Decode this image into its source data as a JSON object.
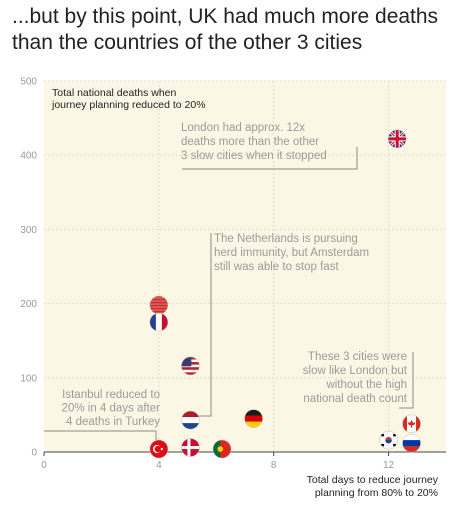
{
  "title_lines": [
    "...but by this point, UK had much more deaths",
    "than the countries of the other 3 cities"
  ],
  "chart_data": {
    "type": "scatter",
    "title": "...but by this point, UK had much more deaths than the countries of the other 3 cities",
    "ylabel_lines": [
      "Total national deaths when",
      "journey planning reduced to 20%"
    ],
    "xlabel_lines": [
      "Total days to reduce journey",
      "planning from 80% to 20%"
    ],
    "xlim": [
      0,
      14
    ],
    "ylim": [
      0,
      500
    ],
    "xticks": [
      0,
      4,
      8,
      12
    ],
    "yticks": [
      0,
      100,
      200,
      300,
      400,
      500
    ],
    "grid": true,
    "points": [
      {
        "x": 12.3,
        "y": 422,
        "country": "United Kingdom"
      },
      {
        "x": 4,
        "y": 198,
        "country": "China"
      },
      {
        "x": 4,
        "y": 175,
        "country": "France"
      },
      {
        "x": 5.1,
        "y": 116,
        "country": "United States"
      },
      {
        "x": 5.1,
        "y": 43,
        "country": "Netherlands"
      },
      {
        "x": 7.3,
        "y": 45,
        "country": "Germany"
      },
      {
        "x": 4,
        "y": 4,
        "country": "Turkey"
      },
      {
        "x": 5.1,
        "y": 6,
        "country": "Denmark"
      },
      {
        "x": 6.2,
        "y": 4,
        "country": "Portugal"
      },
      {
        "x": 12,
        "y": 16,
        "country": "South Korea"
      },
      {
        "x": 12.8,
        "y": 38,
        "country": "Canada"
      },
      {
        "x": 12.8,
        "y": 12,
        "country": "Russia"
      }
    ],
    "annotations": [
      {
        "lines": [
          "London had approx. 12x",
          "deaths more than the other",
          "3 slow cities when it stopped"
        ]
      },
      {
        "lines": [
          "The Netherlands is pursuing",
          "herd immunity, but Amsterdam",
          "still was able to stop fast"
        ]
      },
      {
        "lines": [
          "These 3 cities were",
          "slow like London but",
          "without the high",
          "national death count"
        ]
      },
      {
        "lines": [
          "Istanbul reduced to",
          "20% in 4 days after",
          "4 deaths in Turkey"
        ]
      }
    ]
  },
  "colors": {
    "plot_bg": "#fbf7e4",
    "grid": "#e2ddc7",
    "axis": "#444444",
    "annotation": "#9a9a9a",
    "leader": "#8a8a8a"
  }
}
